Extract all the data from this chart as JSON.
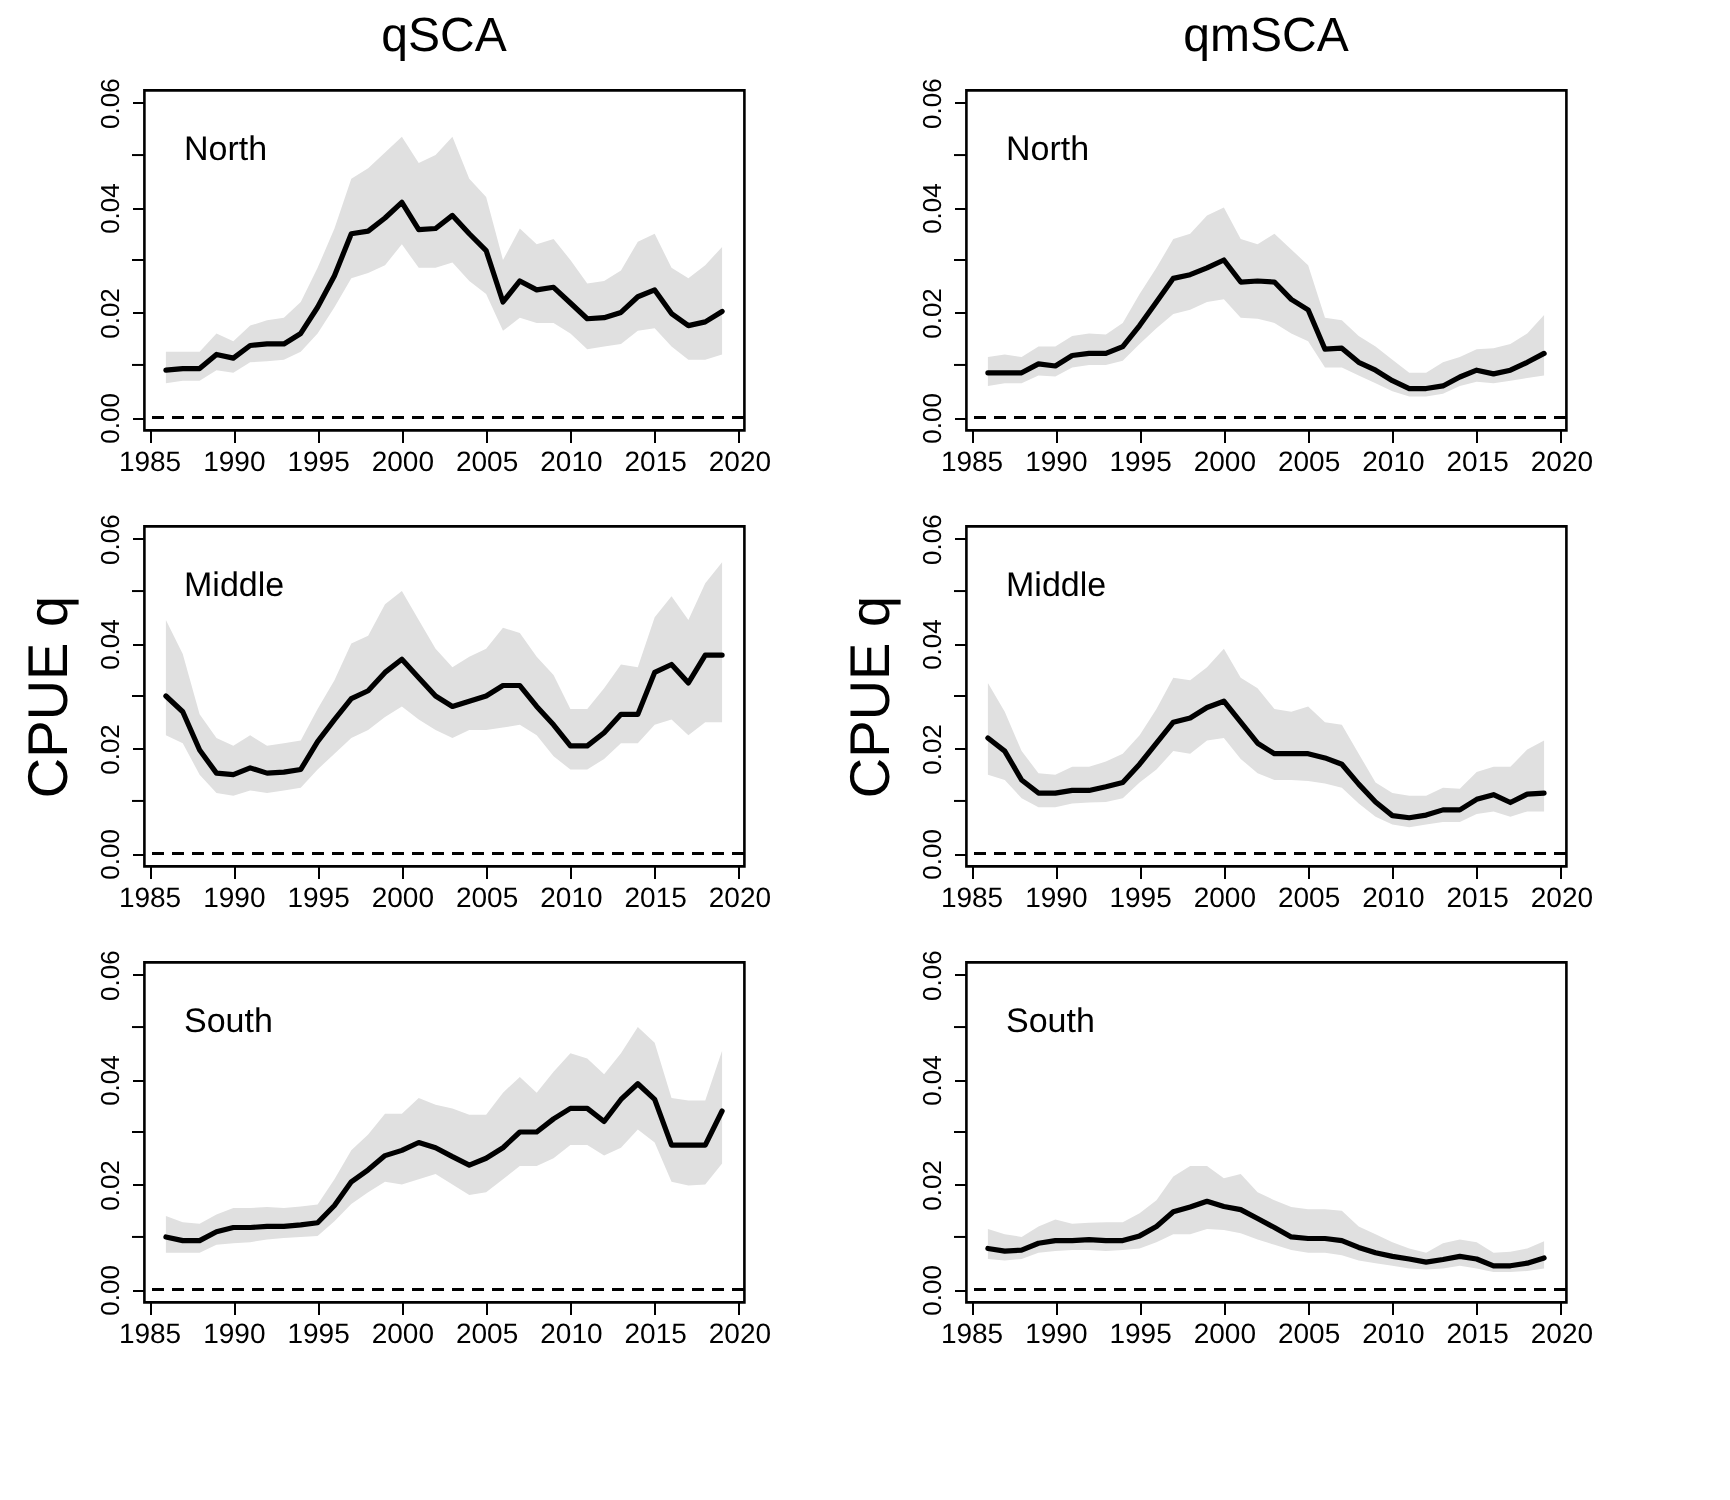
{
  "chart_data": [
    {
      "type": "line",
      "title": "qSCA",
      "annotations": [
        "North"
      ],
      "x": [
        1986,
        1987,
        1988,
        1989,
        1990,
        1991,
        1992,
        1993,
        1994,
        1995,
        1996,
        1997,
        1998,
        1999,
        2000,
        2001,
        2002,
        2003,
        2004,
        2005,
        2006,
        2007,
        2008,
        2009,
        2010,
        2011,
        2012,
        2013,
        2014,
        2015,
        2016,
        2017,
        2018,
        2019
      ],
      "xlim": [
        1984.7,
        2020.3
      ],
      "ylim": [
        -0.0024,
        0.0624
      ],
      "xticks": [
        1985,
        1990,
        1995,
        2000,
        2005,
        2010,
        2015,
        2020
      ],
      "yticks": [
        {
          "value": 0,
          "label": "0.00"
        },
        {
          "value": 0.01,
          "label": null
        },
        {
          "value": 0.02,
          "label": "0.02"
        },
        {
          "value": 0.03,
          "label": null
        },
        {
          "value": 0.04,
          "label": "0.04"
        },
        {
          "value": 0.05,
          "label": null
        },
        {
          "value": 0.06,
          "label": "0.06"
        }
      ],
      "ref_lines": [
        {
          "axis": "y",
          "value": 0,
          "line_style": "dashed"
        }
      ],
      "series": [
        {
          "color": "#000000",
          "values": [
            0.009,
            0.0093,
            0.0093,
            0.012,
            0.0113,
            0.0137,
            0.014,
            0.014,
            0.016,
            0.021,
            0.027,
            0.035,
            0.0355,
            0.038,
            0.041,
            0.0358,
            0.036,
            0.0385,
            0.035,
            0.0318,
            0.022,
            0.026,
            0.0243,
            0.0248,
            0.0218,
            0.0188,
            0.019,
            0.02,
            0.023,
            0.0243,
            0.0198,
            0.0175,
            0.0182,
            0.0202
          ],
          "lower": [
            0.0065,
            0.007,
            0.007,
            0.009,
            0.0085,
            0.0105,
            0.0107,
            0.011,
            0.0125,
            0.016,
            0.021,
            0.0265,
            0.0275,
            0.029,
            0.033,
            0.0285,
            0.0285,
            0.0295,
            0.026,
            0.0235,
            0.0165,
            0.019,
            0.018,
            0.018,
            0.016,
            0.013,
            0.0135,
            0.014,
            0.0165,
            0.017,
            0.0135,
            0.011,
            0.011,
            0.012
          ],
          "upper": [
            0.0125,
            0.0125,
            0.0125,
            0.016,
            0.0145,
            0.0175,
            0.0185,
            0.019,
            0.022,
            0.0285,
            0.036,
            0.0455,
            0.0475,
            0.0505,
            0.0535,
            0.0485,
            0.05,
            0.0535,
            0.0455,
            0.042,
            0.03,
            0.036,
            0.033,
            0.034,
            0.03,
            0.0255,
            0.026,
            0.028,
            0.0335,
            0.035,
            0.0285,
            0.0265,
            0.029,
            0.0325
          ]
        }
      ]
    },
    {
      "type": "line",
      "title": "qmSCA",
      "annotations": [
        "North"
      ],
      "x": [
        1986,
        1987,
        1988,
        1989,
        1990,
        1991,
        1992,
        1993,
        1994,
        1995,
        1996,
        1997,
        1998,
        1999,
        2000,
        2001,
        2002,
        2003,
        2004,
        2005,
        2006,
        2007,
        2008,
        2009,
        2010,
        2011,
        2012,
        2013,
        2014,
        2015,
        2016,
        2017,
        2018,
        2019
      ],
      "xlim": [
        1984.7,
        2020.3
      ],
      "ylim": [
        -0.0024,
        0.0624
      ],
      "xticks": [
        1985,
        1990,
        1995,
        2000,
        2005,
        2010,
        2015,
        2020
      ],
      "yticks": [
        {
          "value": 0,
          "label": "0.00"
        },
        {
          "value": 0.01,
          "label": null
        },
        {
          "value": 0.02,
          "label": "0.02"
        },
        {
          "value": 0.03,
          "label": null
        },
        {
          "value": 0.04,
          "label": "0.04"
        },
        {
          "value": 0.05,
          "label": null
        },
        {
          "value": 0.06,
          "label": "0.06"
        }
      ],
      "ref_lines": [
        {
          "axis": "y",
          "value": 0,
          "line_style": "dashed"
        }
      ],
      "series": [
        {
          "color": "#000000",
          "values": [
            0.0085,
            0.0085,
            0.0085,
            0.0102,
            0.0098,
            0.0118,
            0.0122,
            0.0122,
            0.0135,
            0.0175,
            0.022,
            0.0265,
            0.0272,
            0.0285,
            0.03,
            0.0258,
            0.026,
            0.0258,
            0.0225,
            0.0205,
            0.013,
            0.0132,
            0.0105,
            0.009,
            0.007,
            0.0055,
            0.0055,
            0.006,
            0.0077,
            0.009,
            0.0083,
            0.009,
            0.0105,
            0.0122
          ],
          "lower": [
            0.006,
            0.0065,
            0.0065,
            0.008,
            0.0078,
            0.0095,
            0.01,
            0.01,
            0.0108,
            0.014,
            0.017,
            0.0197,
            0.0205,
            0.022,
            0.0225,
            0.019,
            0.0188,
            0.018,
            0.016,
            0.0145,
            0.0095,
            0.0095,
            0.008,
            0.0065,
            0.005,
            0.004,
            0.004,
            0.0045,
            0.006,
            0.0068,
            0.0065,
            0.007,
            0.0075,
            0.008
          ],
          "upper": [
            0.0115,
            0.012,
            0.0115,
            0.0135,
            0.0135,
            0.0155,
            0.016,
            0.0158,
            0.018,
            0.0235,
            0.0285,
            0.034,
            0.035,
            0.0385,
            0.04,
            0.034,
            0.033,
            0.035,
            0.032,
            0.029,
            0.019,
            0.0185,
            0.0155,
            0.0135,
            0.011,
            0.0085,
            0.0085,
            0.0105,
            0.0115,
            0.013,
            0.0132,
            0.014,
            0.016,
            0.0195
          ]
        }
      ]
    },
    {
      "type": "line",
      "ylabel": "CPUE q",
      "annotations": [
        "Middle"
      ],
      "x": [
        1986,
        1987,
        1988,
        1989,
        1990,
        1991,
        1992,
        1993,
        1994,
        1995,
        1996,
        1997,
        1998,
        1999,
        2000,
        2001,
        2002,
        2003,
        2004,
        2005,
        2006,
        2007,
        2008,
        2009,
        2010,
        2011,
        2012,
        2013,
        2014,
        2015,
        2016,
        2017,
        2018,
        2019
      ],
      "xlim": [
        1984.7,
        2020.3
      ],
      "ylim": [
        -0.0024,
        0.0624
      ],
      "xticks": [
        1985,
        1990,
        1995,
        2000,
        2005,
        2010,
        2015,
        2020
      ],
      "yticks": [
        {
          "value": 0,
          "label": "0.00"
        },
        {
          "value": 0.01,
          "label": null
        },
        {
          "value": 0.02,
          "label": "0.02"
        },
        {
          "value": 0.03,
          "label": null
        },
        {
          "value": 0.04,
          "label": "0.04"
        },
        {
          "value": 0.05,
          "label": null
        },
        {
          "value": 0.06,
          "label": "0.06"
        }
      ],
      "ref_lines": [
        {
          "axis": "y",
          "value": 0,
          "line_style": "dashed"
        }
      ],
      "series": [
        {
          "color": "#000000",
          "values": [
            0.03,
            0.027,
            0.0197,
            0.0153,
            0.015,
            0.0163,
            0.0153,
            0.0155,
            0.016,
            0.0213,
            0.0255,
            0.0295,
            0.031,
            0.0345,
            0.037,
            0.0335,
            0.03,
            0.028,
            0.029,
            0.03,
            0.032,
            0.032,
            0.028,
            0.0245,
            0.0205,
            0.0205,
            0.023,
            0.0265,
            0.0265,
            0.0345,
            0.036,
            0.0325,
            0.0378,
            0.0378
          ],
          "lower": [
            0.0225,
            0.021,
            0.015,
            0.0115,
            0.011,
            0.012,
            0.0115,
            0.012,
            0.0125,
            0.016,
            0.019,
            0.022,
            0.0235,
            0.026,
            0.028,
            0.0255,
            0.0235,
            0.022,
            0.0235,
            0.0235,
            0.024,
            0.0245,
            0.0225,
            0.0185,
            0.016,
            0.016,
            0.018,
            0.021,
            0.021,
            0.0245,
            0.0255,
            0.0225,
            0.025,
            0.025
          ],
          "upper": [
            0.0445,
            0.038,
            0.0265,
            0.022,
            0.0205,
            0.0225,
            0.0205,
            0.021,
            0.0215,
            0.0275,
            0.033,
            0.04,
            0.0415,
            0.0475,
            0.05,
            0.0445,
            0.039,
            0.0355,
            0.0375,
            0.039,
            0.043,
            0.042,
            0.0375,
            0.034,
            0.0275,
            0.0275,
            0.0315,
            0.036,
            0.0355,
            0.045,
            0.049,
            0.0445,
            0.0515,
            0.0555
          ]
        }
      ]
    },
    {
      "type": "line",
      "ylabel": "CPUE q",
      "annotations": [
        "Middle"
      ],
      "x": [
        1986,
        1987,
        1988,
        1989,
        1990,
        1991,
        1992,
        1993,
        1994,
        1995,
        1996,
        1997,
        1998,
        1999,
        2000,
        2001,
        2002,
        2003,
        2004,
        2005,
        2006,
        2007,
        2008,
        2009,
        2010,
        2011,
        2012,
        2013,
        2014,
        2015,
        2016,
        2017,
        2018,
        2019
      ],
      "xlim": [
        1984.7,
        2020.3
      ],
      "ylim": [
        -0.0024,
        0.0624
      ],
      "xticks": [
        1985,
        1990,
        1995,
        2000,
        2005,
        2010,
        2015,
        2020
      ],
      "yticks": [
        {
          "value": 0,
          "label": "0.00"
        },
        {
          "value": 0.01,
          "label": null
        },
        {
          "value": 0.02,
          "label": "0.02"
        },
        {
          "value": 0.03,
          "label": null
        },
        {
          "value": 0.04,
          "label": "0.04"
        },
        {
          "value": 0.05,
          "label": null
        },
        {
          "value": 0.06,
          "label": "0.06"
        }
      ],
      "ref_lines": [
        {
          "axis": "y",
          "value": 0,
          "line_style": "dashed"
        }
      ],
      "series": [
        {
          "color": "#000000",
          "values": [
            0.022,
            0.0195,
            0.014,
            0.0115,
            0.0115,
            0.012,
            0.012,
            0.0127,
            0.0135,
            0.017,
            0.021,
            0.025,
            0.0258,
            0.0278,
            0.029,
            0.025,
            0.021,
            0.019,
            0.019,
            0.019,
            0.0182,
            0.017,
            0.0132,
            0.0098,
            0.0072,
            0.0068,
            0.0073,
            0.0083,
            0.0083,
            0.0103,
            0.0112,
            0.0097,
            0.0113,
            0.0115
          ],
          "lower": [
            0.015,
            0.014,
            0.0105,
            0.0088,
            0.0088,
            0.0095,
            0.0097,
            0.0098,
            0.0105,
            0.0135,
            0.016,
            0.0195,
            0.019,
            0.0215,
            0.022,
            0.018,
            0.0153,
            0.014,
            0.014,
            0.0138,
            0.0133,
            0.0125,
            0.0095,
            0.007,
            0.0055,
            0.005,
            0.0055,
            0.006,
            0.006,
            0.0075,
            0.008,
            0.007,
            0.008,
            0.008
          ],
          "upper": [
            0.0325,
            0.027,
            0.0195,
            0.0153,
            0.015,
            0.0165,
            0.0165,
            0.0175,
            0.019,
            0.0225,
            0.0275,
            0.0335,
            0.033,
            0.0355,
            0.039,
            0.0335,
            0.0315,
            0.0275,
            0.027,
            0.028,
            0.025,
            0.0245,
            0.019,
            0.0135,
            0.0115,
            0.011,
            0.011,
            0.0125,
            0.0123,
            0.0155,
            0.0165,
            0.0165,
            0.0198,
            0.0215
          ]
        }
      ]
    },
    {
      "type": "line",
      "annotations": [
        "South"
      ],
      "x": [
        1986,
        1987,
        1988,
        1989,
        1990,
        1991,
        1992,
        1993,
        1994,
        1995,
        1996,
        1997,
        1998,
        1999,
        2000,
        2001,
        2002,
        2003,
        2004,
        2005,
        2006,
        2007,
        2008,
        2009,
        2010,
        2011,
        2012,
        2013,
        2014,
        2015,
        2016,
        2017,
        2018,
        2019
      ],
      "xlim": [
        1984.7,
        2020.3
      ],
      "ylim": [
        -0.0024,
        0.0624
      ],
      "xticks": [
        1985,
        1990,
        1995,
        2000,
        2005,
        2010,
        2015,
        2020
      ],
      "yticks": [
        {
          "value": 0,
          "label": "0.00"
        },
        {
          "value": 0.01,
          "label": null
        },
        {
          "value": 0.02,
          "label": "0.02"
        },
        {
          "value": 0.03,
          "label": null
        },
        {
          "value": 0.04,
          "label": "0.04"
        },
        {
          "value": 0.05,
          "label": null
        },
        {
          "value": 0.06,
          "label": "0.06"
        }
      ],
      "ref_lines": [
        {
          "axis": "y",
          "value": 0,
          "line_style": "dashed"
        }
      ],
      "series": [
        {
          "color": "#000000",
          "values": [
            0.01,
            0.0093,
            0.0093,
            0.011,
            0.0118,
            0.0118,
            0.012,
            0.012,
            0.0123,
            0.0127,
            0.016,
            0.0205,
            0.0228,
            0.0255,
            0.0265,
            0.028,
            0.027,
            0.0253,
            0.0237,
            0.025,
            0.027,
            0.03,
            0.03,
            0.0325,
            0.0345,
            0.0345,
            0.032,
            0.0362,
            0.0392,
            0.0362,
            0.0275,
            0.0275,
            0.0275,
            0.034
          ],
          "lower": [
            0.007,
            0.007,
            0.007,
            0.0085,
            0.0088,
            0.009,
            0.0095,
            0.0098,
            0.01,
            0.0102,
            0.013,
            0.0163,
            0.0185,
            0.0205,
            0.02,
            0.021,
            0.022,
            0.02,
            0.018,
            0.0185,
            0.021,
            0.0235,
            0.0235,
            0.025,
            0.0275,
            0.0275,
            0.0255,
            0.027,
            0.0305,
            0.028,
            0.0205,
            0.0198,
            0.02,
            0.024
          ],
          "upper": [
            0.014,
            0.0128,
            0.0125,
            0.0143,
            0.0155,
            0.0155,
            0.0157,
            0.0155,
            0.0158,
            0.0162,
            0.021,
            0.0265,
            0.0295,
            0.0335,
            0.0335,
            0.0365,
            0.0352,
            0.0345,
            0.0333,
            0.0333,
            0.0375,
            0.0405,
            0.0375,
            0.0415,
            0.045,
            0.044,
            0.041,
            0.045,
            0.05,
            0.047,
            0.0365,
            0.036,
            0.036,
            0.0455
          ]
        }
      ]
    },
    {
      "type": "line",
      "annotations": [
        "South"
      ],
      "x": [
        1986,
        1987,
        1988,
        1989,
        1990,
        1991,
        1992,
        1993,
        1994,
        1995,
        1996,
        1997,
        1998,
        1999,
        2000,
        2001,
        2002,
        2003,
        2004,
        2005,
        2006,
        2007,
        2008,
        2009,
        2010,
        2011,
        2012,
        2013,
        2014,
        2015,
        2016,
        2017,
        2018,
        2019
      ],
      "xlim": [
        1984.7,
        2020.3
      ],
      "ylim": [
        -0.0024,
        0.0624
      ],
      "xticks": [
        1985,
        1990,
        1995,
        2000,
        2005,
        2010,
        2015,
        2020
      ],
      "yticks": [
        {
          "value": 0,
          "label": "0.00"
        },
        {
          "value": 0.01,
          "label": null
        },
        {
          "value": 0.02,
          "label": "0.02"
        },
        {
          "value": 0.03,
          "label": null
        },
        {
          "value": 0.04,
          "label": "0.04"
        },
        {
          "value": 0.05,
          "label": null
        },
        {
          "value": 0.06,
          "label": "0.06"
        }
      ],
      "ref_lines": [
        {
          "axis": "y",
          "value": 0,
          "line_style": "dashed"
        }
      ],
      "series": [
        {
          "color": "#000000",
          "values": [
            0.0078,
            0.0073,
            0.0075,
            0.0088,
            0.0093,
            0.0093,
            0.0095,
            0.0093,
            0.0093,
            0.0102,
            0.012,
            0.0148,
            0.0157,
            0.0168,
            0.0158,
            0.0152,
            0.0135,
            0.0118,
            0.01,
            0.0097,
            0.0097,
            0.0093,
            0.008,
            0.007,
            0.0063,
            0.0058,
            0.0052,
            0.0057,
            0.0063,
            0.0058,
            0.0045,
            0.0045,
            0.005,
            0.006
          ],
          "lower": [
            0.0058,
            0.0055,
            0.0058,
            0.007,
            0.0073,
            0.0075,
            0.0075,
            0.0073,
            0.0075,
            0.0078,
            0.009,
            0.0105,
            0.0105,
            0.0115,
            0.0113,
            0.0107,
            0.0095,
            0.0085,
            0.0075,
            0.007,
            0.007,
            0.0065,
            0.0055,
            0.005,
            0.0045,
            0.004,
            0.0038,
            0.004,
            0.0045,
            0.004,
            0.0033,
            0.0033,
            0.0035,
            0.004
          ],
          "upper": [
            0.0115,
            0.0105,
            0.01,
            0.012,
            0.0133,
            0.0125,
            0.0127,
            0.0128,
            0.0128,
            0.0145,
            0.017,
            0.0215,
            0.0235,
            0.0235,
            0.0212,
            0.022,
            0.0185,
            0.017,
            0.0157,
            0.0153,
            0.0153,
            0.015,
            0.012,
            0.0105,
            0.009,
            0.0078,
            0.007,
            0.0088,
            0.0095,
            0.009,
            0.007,
            0.0072,
            0.0078,
            0.0092
          ]
        }
      ]
    }
  ]
}
